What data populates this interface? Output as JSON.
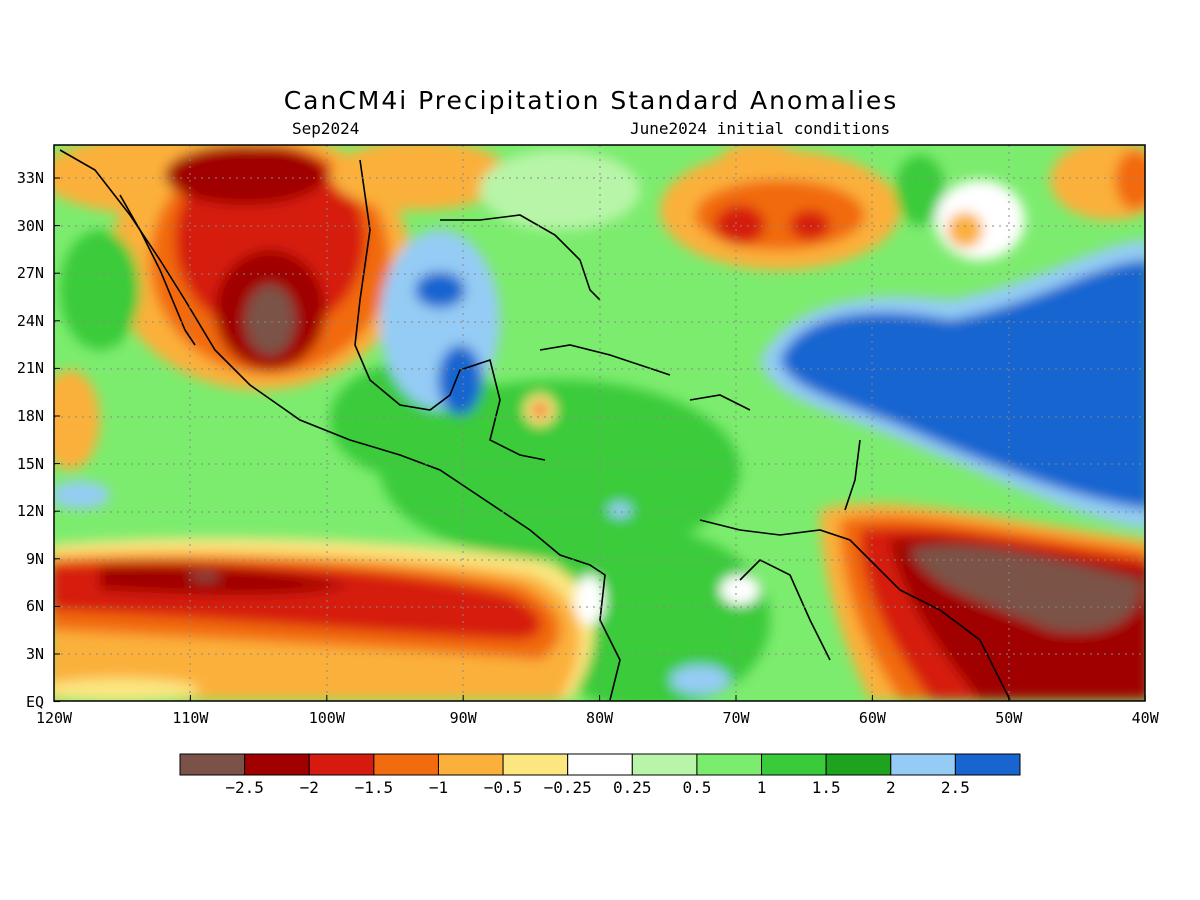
{
  "title": "CanCM4i Precipitation Standard Anomalies",
  "subtitle_left": "Sep2024",
  "subtitle_right": "June2024 initial conditions",
  "lat_labels": [
    "33N",
    "30N",
    "27N",
    "24N",
    "21N",
    "18N",
    "15N",
    "12N",
    "9N",
    "6N",
    "3N",
    "EQ"
  ],
  "lon_labels": [
    "120W",
    "110W",
    "100W",
    "90W",
    "80W",
    "70W",
    "60W",
    "50W",
    "40W"
  ],
  "colorbar": {
    "colors": [
      "#7b5247",
      "#a00000",
      "#d61a0f",
      "#f26b0f",
      "#fbb03b",
      "#fce680",
      "#ffffff",
      "#b8f5a8",
      "#7cec6e",
      "#3acb3a",
      "#1ea31e",
      "#94ccf5",
      "#1865d0"
    ],
    "labels": [
      "−2.5",
      "−2",
      "−1.5",
      "−1",
      "−0.5",
      "−0.25",
      "0.25",
      "0.5",
      "1",
      "1.5",
      "2",
      "2.5"
    ]
  }
}
